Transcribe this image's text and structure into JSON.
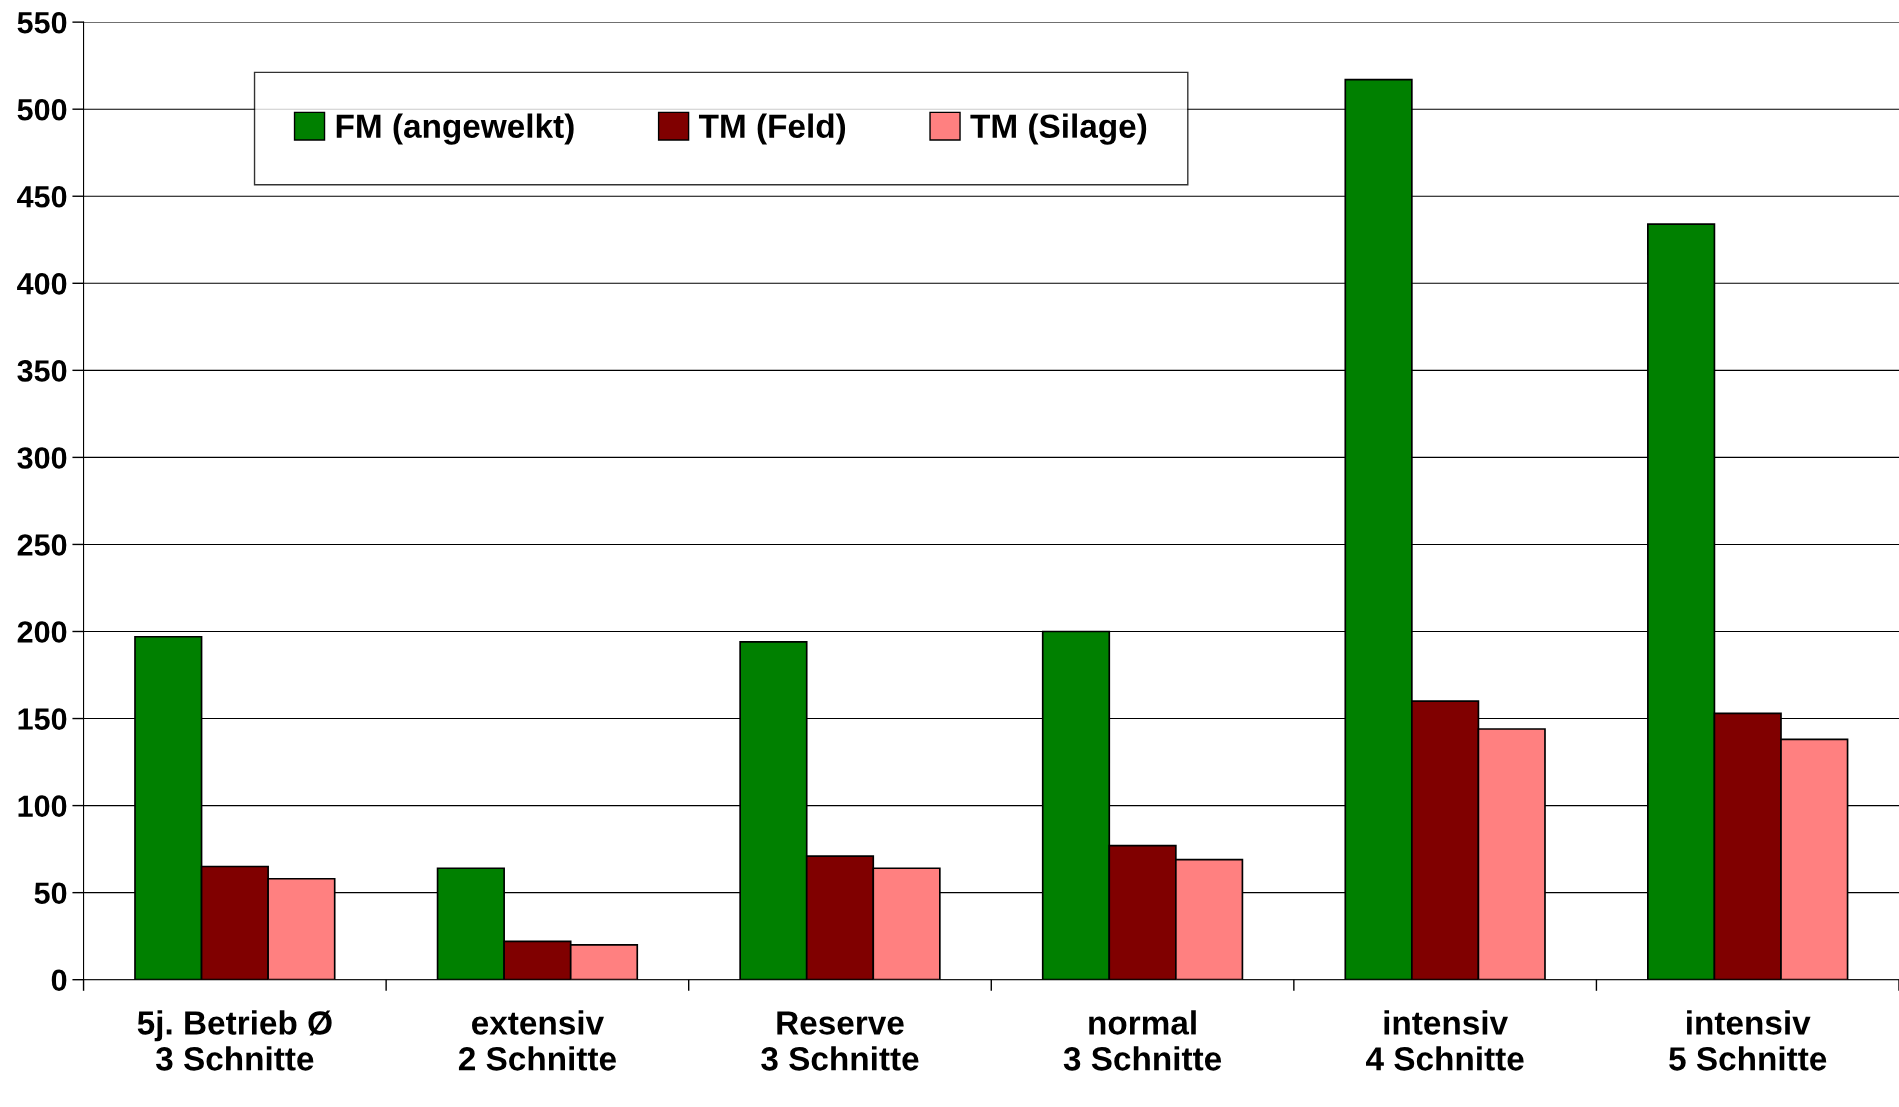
{
  "chart_data": {
    "type": "bar",
    "categories": [
      "5j. Betrieb Ø\n3 Schnitte",
      "extensiv\n2 Schnitte",
      "Reserve\n3 Schnitte",
      "normal\n3 Schnitte",
      "intensiv\n4 Schnitte",
      "intensiv\n5 Schnitte"
    ],
    "series": [
      {
        "name": "FM (angewelkt)",
        "color": "#008000",
        "values": [
          197,
          64,
          194,
          200,
          517,
          434
        ]
      },
      {
        "name": "TM (Feld)",
        "color": "#800000",
        "values": [
          65,
          22,
          71,
          77,
          160,
          153
        ]
      },
      {
        "name": "TM (Silage)",
        "color": "#ff8080",
        "values": [
          58,
          20,
          64,
          69,
          144,
          138
        ]
      }
    ],
    "ylim": [
      0,
      550
    ],
    "yticks": [
      0,
      50,
      100,
      150,
      200,
      250,
      300,
      350,
      400,
      450,
      500,
      550
    ],
    "grid": "y",
    "legend": "top left"
  }
}
